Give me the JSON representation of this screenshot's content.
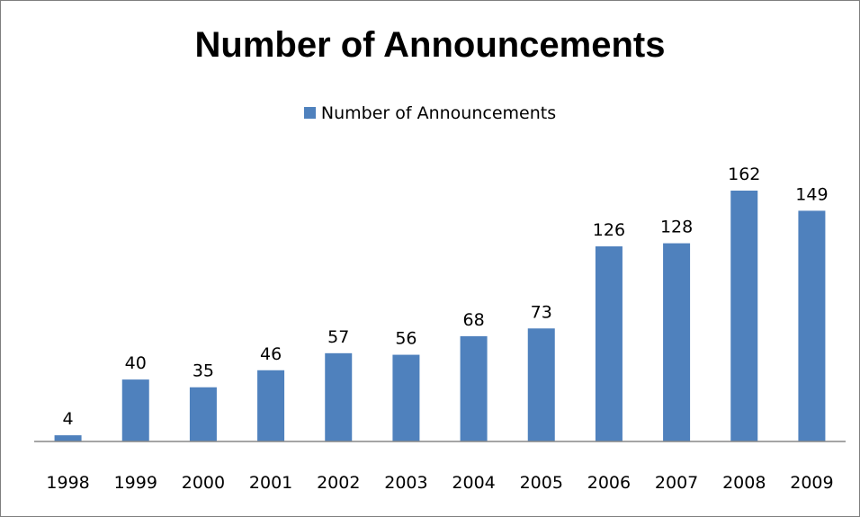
{
  "chart_data": {
    "type": "bar",
    "title": "Number of Announcements",
    "xlabel": "",
    "ylabel": "",
    "categories": [
      "1998",
      "1999",
      "2000",
      "2001",
      "2002",
      "2003",
      "2004",
      "2005",
      "2006",
      "2007",
      "2008",
      "2009"
    ],
    "series": [
      {
        "name": "Number of Announcements",
        "values": [
          4,
          40,
          35,
          46,
          57,
          56,
          68,
          73,
          126,
          128,
          162,
          149
        ],
        "color": "#4f81bd"
      }
    ],
    "ylim": [
      0,
      185
    ],
    "grid": false,
    "data_labels": true,
    "legend": "top"
  }
}
